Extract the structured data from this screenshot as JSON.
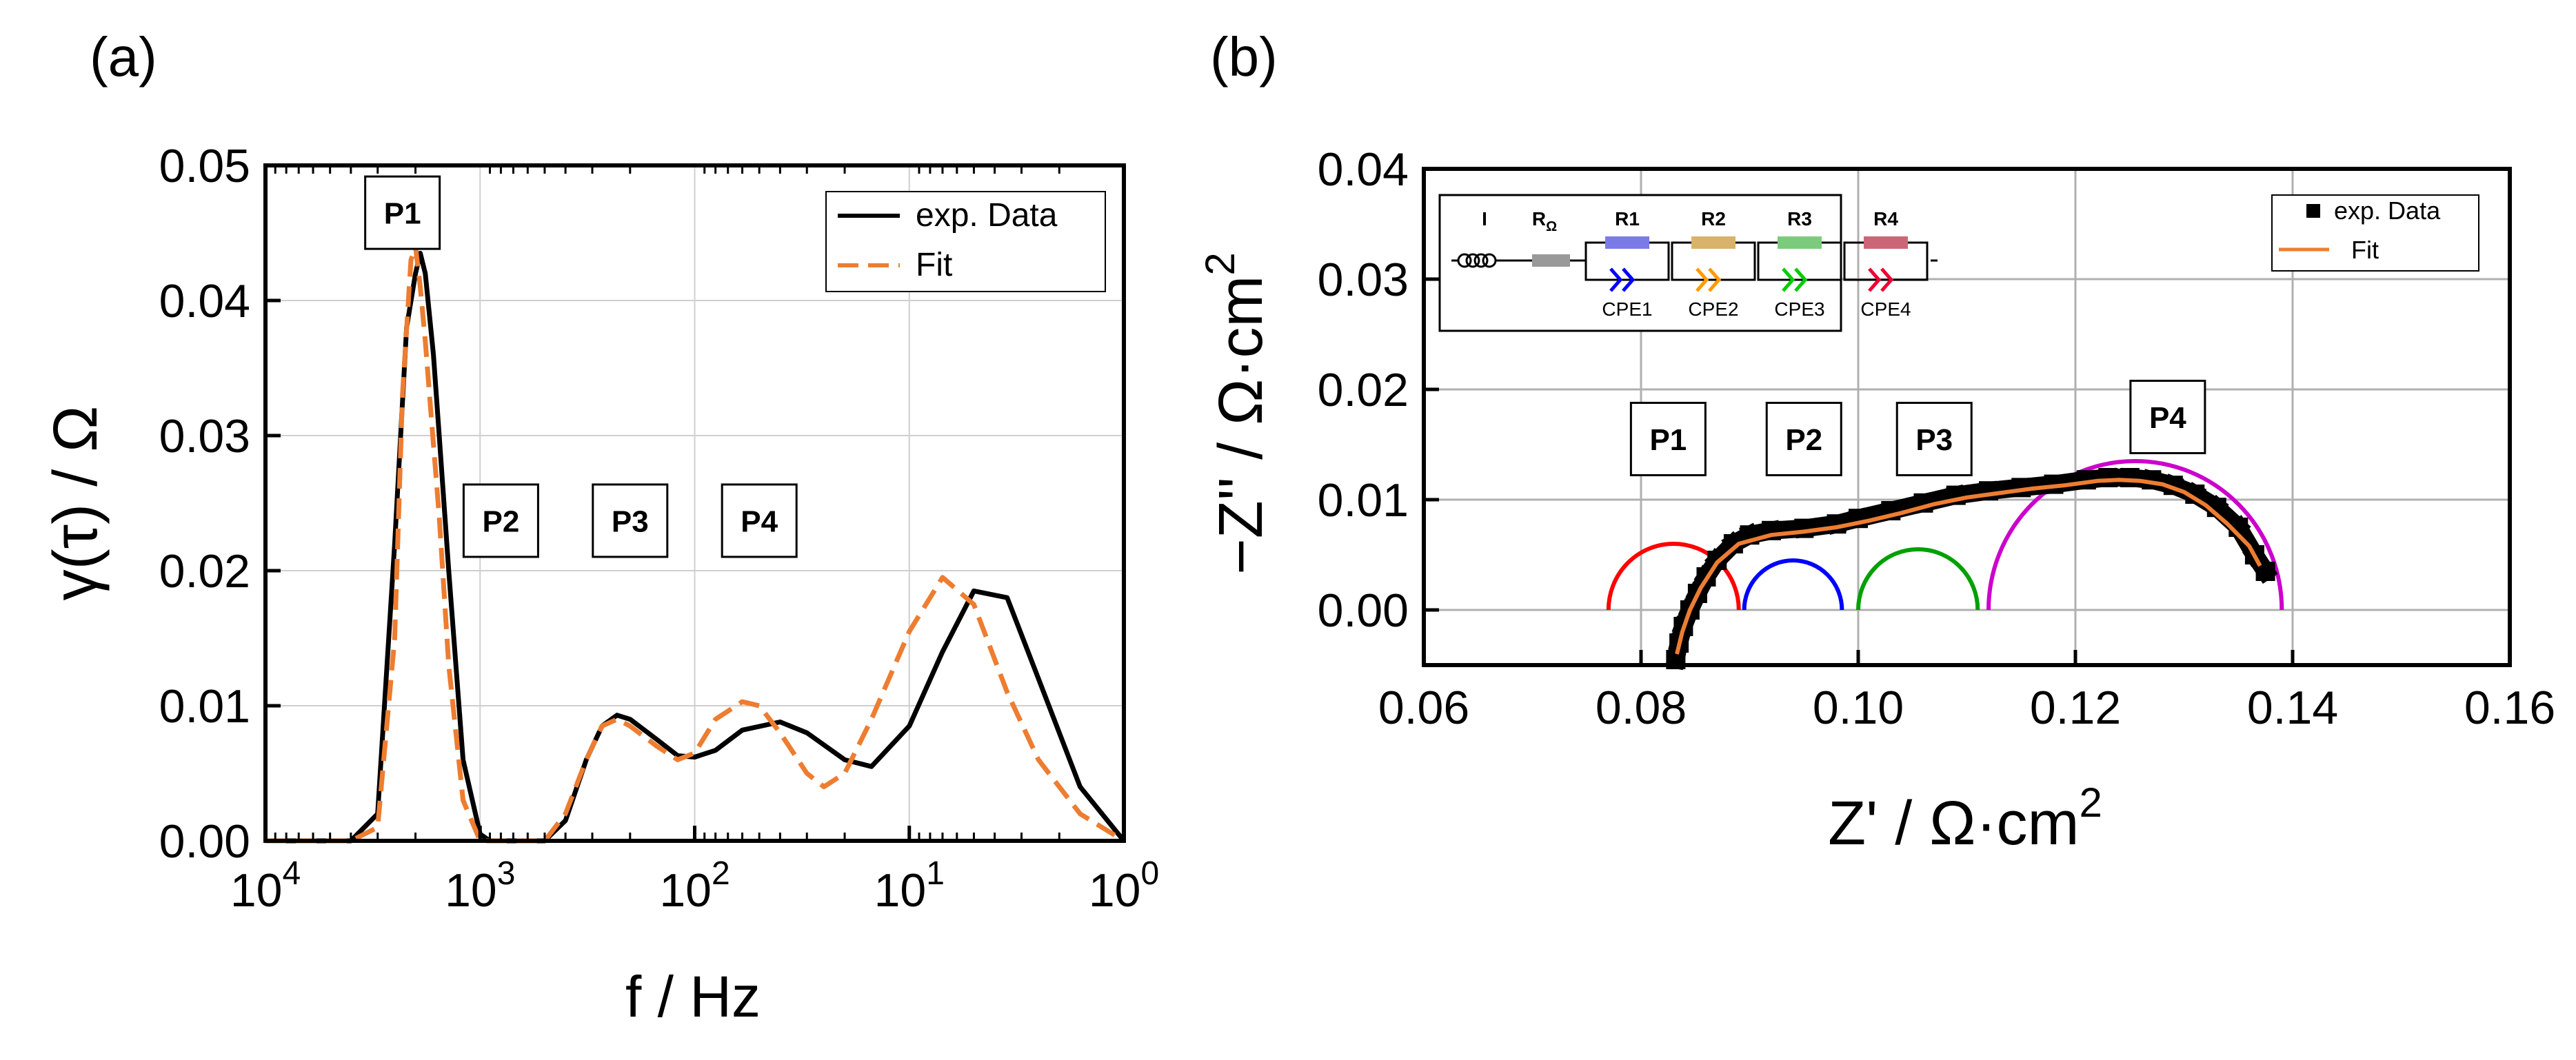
{
  "chart_data": [
    {
      "panel_label": "(a)",
      "type": "line",
      "xlabel": "f / Hz",
      "ylabel": "γ(τ) / Ω",
      "xscale": "log-reversed",
      "xlim": [
        10000,
        1
      ],
      "ylim": [
        0,
        0.05
      ],
      "grid": true,
      "legend_position": "top-right",
      "x_ticks": [
        {
          "value": 10000,
          "base": "10",
          "exp": "4"
        },
        {
          "value": 1000,
          "base": "10",
          "exp": "3"
        },
        {
          "value": 100,
          "base": "10",
          "exp": "2"
        },
        {
          "value": 10,
          "base": "10",
          "exp": "1"
        },
        {
          "value": 1,
          "base": "10",
          "exp": "0"
        }
      ],
      "y_ticks": [
        "0.00",
        "0.01",
        "0.02",
        "0.03",
        "0.04",
        "0.05"
      ],
      "series": [
        {
          "name": "exp. Data",
          "color": "#000000",
          "style": "solid",
          "x": [
            10000,
            4000,
            3000,
            2500,
            2200,
            2000,
            1900,
            1800,
            1650,
            1550,
            1400,
            1200,
            1000,
            900,
            800,
            700,
            500,
            400,
            320,
            270,
            230,
            200,
            150,
            120,
            100,
            80,
            60,
            40,
            30,
            20,
            15,
            10,
            7,
            5,
            3.5,
            2.5,
            1.6,
            1
          ],
          "y": [
            0,
            0,
            0.002,
            0.022,
            0.038,
            0.042,
            0.0435,
            0.042,
            0.036,
            0.03,
            0.02,
            0.006,
            0.0005,
            0,
            0,
            0,
            0,
            0.0015,
            0.006,
            0.0085,
            0.0093,
            0.009,
            0.0075,
            0.0063,
            0.0062,
            0.0067,
            0.0082,
            0.0088,
            0.008,
            0.006,
            0.0055,
            0.0085,
            0.014,
            0.0185,
            0.018,
            0.012,
            0.004,
            0
          ]
        },
        {
          "name": "Fit",
          "color": "#ED7D31",
          "style": "dashed",
          "x": [
            10000,
            4000,
            3000,
            2500,
            2300,
            2100,
            2000,
            1900,
            1800,
            1700,
            1550,
            1400,
            1200,
            1000,
            900,
            800,
            700,
            500,
            400,
            320,
            270,
            230,
            200,
            150,
            120,
            100,
            80,
            60,
            50,
            40,
            30,
            25,
            20,
            15,
            10,
            7,
            5,
            3.5,
            2.5,
            1.6,
            1
          ],
          "y": [
            0,
            0,
            0.001,
            0.015,
            0.033,
            0.043,
            0.044,
            0.041,
            0.037,
            0.032,
            0.024,
            0.013,
            0.003,
            0,
            0,
            0,
            0,
            0,
            0.002,
            0.006,
            0.0085,
            0.009,
            0.0085,
            0.007,
            0.006,
            0.0065,
            0.009,
            0.0103,
            0.01,
            0.008,
            0.005,
            0.004,
            0.005,
            0.009,
            0.0155,
            0.0195,
            0.0175,
            0.011,
            0.006,
            0.002,
            0
          ]
        }
      ],
      "annotations": [
        {
          "text": "P1",
          "x": 2300,
          "y": 0.0465
        },
        {
          "text": "P2",
          "x": 800,
          "y": 0.0237
        },
        {
          "text": "P3",
          "x": 200,
          "y": 0.0237
        },
        {
          "text": "P4",
          "x": 50,
          "y": 0.0237
        }
      ]
    },
    {
      "panel_label": "(b)",
      "type": "scatter",
      "xlabel": "Z' / Ω·cm",
      "xlabel_sup": "2",
      "ylabel": "−Z'' / Ω·cm",
      "ylabel_sup": "2",
      "xlim": [
        0.06,
        0.16
      ],
      "ylim": [
        -0.005,
        0.04
      ],
      "grid": true,
      "legend_position": "top-right",
      "x_ticks": [
        "0.06",
        "0.08",
        "0.10",
        "0.12",
        "0.14",
        "0.16"
      ],
      "y_ticks": [
        "0.00",
        "0.01",
        "0.02",
        "0.03",
        "0.04"
      ],
      "series": [
        {
          "name": "exp. Data",
          "color": "#000000",
          "marker": "square",
          "x": [
            0.0832,
            0.0835,
            0.0839,
            0.0845,
            0.0852,
            0.086,
            0.087,
            0.0885,
            0.09,
            0.092,
            0.095,
            0.098,
            0.1,
            0.103,
            0.106,
            0.109,
            0.112,
            0.115,
            0.118,
            0.121,
            0.123,
            0.125,
            0.127,
            0.129,
            0.131,
            0.133,
            0.135,
            0.1365,
            0.1375
          ],
          "y": [
            -0.0045,
            -0.003,
            -0.0015,
            0.0,
            0.0015,
            0.003,
            0.0045,
            0.006,
            0.0068,
            0.0072,
            0.0074,
            0.0078,
            0.0083,
            0.009,
            0.0097,
            0.0104,
            0.0108,
            0.0111,
            0.0114,
            0.0118,
            0.012,
            0.012,
            0.0118,
            0.0113,
            0.0105,
            0.0093,
            0.0075,
            0.005,
            0.0035
          ]
        },
        {
          "name": "Fit",
          "color": "#ED7D31",
          "marker": "line",
          "x": [
            0.0833,
            0.0838,
            0.0845,
            0.0855,
            0.087,
            0.089,
            0.092,
            0.095,
            0.098,
            0.101,
            0.104,
            0.107,
            0.11,
            0.113,
            0.116,
            0.119,
            0.122,
            0.124,
            0.126,
            0.128,
            0.13,
            0.132,
            0.134,
            0.136,
            0.137
          ],
          "y": [
            -0.004,
            -0.002,
            0.0,
            0.002,
            0.0043,
            0.006,
            0.0068,
            0.0071,
            0.0075,
            0.0081,
            0.0088,
            0.0096,
            0.0102,
            0.0106,
            0.011,
            0.0113,
            0.0117,
            0.0118,
            0.0117,
            0.0114,
            0.0107,
            0.0095,
            0.0078,
            0.0058,
            0.004
          ]
        }
      ],
      "arcs": [
        {
          "name": "P1",
          "color": "#FF0000",
          "center": 0.083,
          "radius": 0.006
        },
        {
          "name": "P2",
          "color": "#0000FF",
          "center": 0.094,
          "radius": 0.0045
        },
        {
          "name": "P3",
          "color": "#00A000",
          "center": 0.1055,
          "radius": 0.0055
        },
        {
          "name": "P4",
          "color": "#CC00CC",
          "center": 0.1255,
          "radius": 0.0135
        }
      ],
      "annotations": [
        {
          "text": "P1",
          "x": 0.0825,
          "y": 0.0155
        },
        {
          "text": "P2",
          "x": 0.095,
          "y": 0.0155
        },
        {
          "text": "P3",
          "x": 0.107,
          "y": 0.0155
        },
        {
          "text": "P4",
          "x": 0.1285,
          "y": 0.0175
        }
      ],
      "circuit_inset": {
        "elements": [
          {
            "label": "I",
            "color": "#000000"
          },
          {
            "label": "R",
            "sub": "Ω",
            "color": "#999999"
          },
          {
            "label": "R1",
            "cpe": "CPE1",
            "color": "#7B7BE8",
            "cpe_color": "#0000FF"
          },
          {
            "label": "R2",
            "cpe": "CPE2",
            "color": "#D9B36B",
            "cpe_color": "#FF9900"
          },
          {
            "label": "R3",
            "cpe": "CPE3",
            "color": "#7CCB7C",
            "cpe_color": "#00CC00"
          },
          {
            "label": "R4",
            "cpe": "CPE4",
            "color": "#CC6677",
            "cpe_color": "#EE0033"
          }
        ]
      }
    }
  ]
}
